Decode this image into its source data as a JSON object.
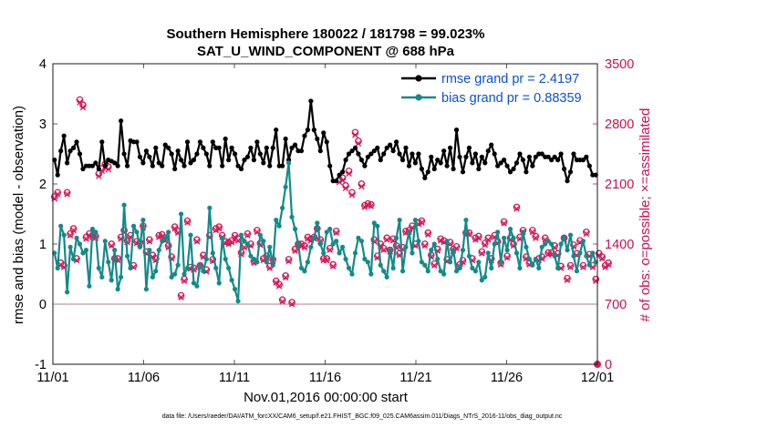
{
  "chart_data": {
    "type": "line",
    "title": "Southern Hemisphere 180022 / 181798 = 99.023%",
    "subtitle": "SAT_U_WIND_COMPONENT @ 688 hPa",
    "xlabel": "Nov.01,2016 00:00:00 start",
    "ylabel_left": "rmse and bias (model - observation)",
    "ylabel_right": "# of obs: o=possible; ×=assimilated",
    "footnote": "data file: /Users/raeder/DAI/ATM_forcXX/CAM6_setup/f.e21.FHIST_BGC.f09_025.CAM6assim.011/Diags_NTrS_2016-11/obs_diag_output.nc",
    "x_ticks": [
      "11/01",
      "11/06",
      "11/11",
      "11/16",
      "11/21",
      "11/26",
      "12/01"
    ],
    "x_tick_days": [
      0,
      5,
      10,
      15,
      20,
      25,
      30
    ],
    "x_range_days": [
      0,
      30
    ],
    "ylim_left": [
      -1,
      4
    ],
    "y_ticks_left": [
      "-1",
      "0",
      "1",
      "2",
      "3",
      "4"
    ],
    "ylim_right": [
      0,
      3500
    ],
    "y_ticks_right": [
      "0",
      "700",
      "1400",
      "2100",
      "2800",
      "3500"
    ],
    "zero_line": 0,
    "colors": {
      "rmse": "#000000",
      "bias": "#138a8a",
      "obs": "#d6195a",
      "zero": "#c9a9ad",
      "legend_text": "#0b4fd6",
      "right_axis": "#c8104c"
    },
    "legend": {
      "position": "top-right",
      "rmse_label": "rmse grand pr = 2.4197",
      "bias_label": "bias grand pr = 0.88359"
    },
    "series": [
      {
        "name": "rmse",
        "values": [
          2.4,
          2.15,
          2.55,
          2.8,
          2.35,
          2.55,
          2.6,
          2.7,
          2.5,
          2.25,
          2.3,
          2.3,
          2.3,
          2.35,
          2.25,
          2.7,
          2.3,
          2.4,
          2.38,
          2.35,
          2.3,
          3.05,
          2.5,
          2.3,
          2.72,
          2.7,
          2.7,
          2.45,
          2.35,
          2.55,
          2.45,
          2.3,
          2.6,
          2.35,
          2.3,
          2.65,
          2.6,
          2.5,
          2.25,
          2.55,
          2.4,
          2.3,
          2.7,
          2.35,
          2.4,
          2.5,
          2.7,
          2.6,
          2.5,
          2.3,
          2.7,
          2.6,
          2.6,
          2.3,
          2.75,
          2.4,
          2.6,
          2.5,
          2.3,
          2.25,
          2.4,
          2.45,
          2.6,
          2.4,
          2.7,
          2.5,
          2.35,
          2.6,
          2.3,
          2.6,
          2.9,
          2.3,
          2.3,
          2.75,
          2.4,
          2.6,
          2.65,
          2.55,
          2.55,
          2.8,
          2.9,
          3.38,
          2.9,
          2.75,
          2.55,
          2.85,
          2.7,
          2.3,
          2.05,
          2.05,
          2.15,
          2.2,
          2.4,
          2.5,
          2.55,
          2.6,
          2.5,
          2.4,
          2.3,
          2.45,
          2.5,
          2.55,
          2.6,
          2.4,
          2.5,
          2.6,
          2.65,
          2.55,
          2.7,
          2.5,
          2.4,
          2.6,
          2.3,
          2.5,
          2.35,
          2.5,
          2.25,
          2.1,
          2.2,
          2.45,
          2.25,
          2.4,
          2.35,
          2.55,
          2.3,
          2.6,
          2.25,
          2.9,
          2.45,
          2.2,
          2.45,
          2.6,
          2.35,
          2.5,
          2.25,
          2.45,
          2.35,
          2.55,
          2.65,
          2.5,
          2.3,
          2.35,
          2.4,
          2.3,
          2.2,
          2.25,
          2.35,
          2.5,
          2.4,
          2.2,
          2.45,
          2.3,
          2.45,
          2.5,
          2.5,
          2.45,
          2.45,
          2.4,
          2.45,
          2.4,
          2.5,
          2.25,
          2.05,
          2.2,
          2.5,
          2.4,
          2.4,
          2.4,
          2.45,
          2.3,
          2.15,
          2.15
        ]
      },
      {
        "name": "bias",
        "values": [
          0.85,
          0.6,
          1.3,
          1.15,
          0.2,
          0.95,
          0.75,
          1.1,
          1.0,
          0.85,
          0.9,
          0.3,
          1.25,
          1.2,
          0.6,
          0.45,
          1.05,
          0.7,
          0.4,
          0.9,
          0.25,
          0.45,
          1.65,
          0.8,
          0.6,
          1.3,
          1.2,
          0.95,
          1.4,
          0.25,
          0.9,
          0.45,
          0.55,
          0.9,
          1.05,
          1.1,
          1.2,
          0.45,
          0.5,
          0.65,
          1.5,
          0.5,
          0.6,
          1.15,
          0.35,
          0.3,
          0.65,
          0.55,
          0.75,
          1.6,
          0.85,
          0.6,
          0.35,
          1.1,
          0.75,
          0.6,
          0.4,
          0.25,
          0.05,
          1.15,
          1.05,
          1.0,
          0.8,
          0.75,
          0.7,
          1.15,
          1.05,
          0.7,
          0.95,
          0.65,
          1.4,
          1.3,
          1.6,
          1.95,
          2.35,
          1.45,
          1.25,
          1.0,
          0.6,
          0.55,
          0.7,
          0.95,
          1.1,
          1.35,
          1.0,
          0.85,
          1.2,
          1.25,
          1.0,
          1.05,
          0.85,
          0.95,
          0.75,
          0.6,
          0.5,
          0.85,
          1.1,
          1.05,
          0.75,
          0.7,
          0.5,
          1.35,
          1.3,
          0.65,
          0.55,
          0.45,
          0.9,
          0.6,
          1.1,
          1.4,
          0.55,
          0.95,
          1.2,
          0.85,
          1.4,
          1.05,
          0.7,
          0.65,
          0.55,
          0.9,
          1.0,
          0.75,
          0.55,
          0.5,
          1.05,
          0.7,
          0.9,
          0.55,
          0.6,
          0.9,
          1.4,
          0.8,
          0.6,
          0.55,
          0.7,
          0.4,
          0.45,
          0.85,
          0.6,
          1.0,
          1.2,
          0.7,
          1.1,
          0.9,
          1.25,
          1.1,
          0.85,
          0.6,
          1.2,
          0.95,
          0.75,
          0.65,
          0.75,
          0.6,
          0.95,
          1.0,
          1.05,
          1.0,
          0.8,
          0.6,
          1.0,
          1.1,
          0.9,
          1.15,
          0.8,
          0.55,
          0.85,
          1.05,
          0.8,
          0.65,
          0.85,
          0.7
        ]
      },
      {
        "name": "obs_possible",
        "values": [
          1950,
          2000,
          1180,
          1150,
          2000,
          1520,
          1580,
          1230,
          3080,
          3020,
          1480,
          1520,
          1500,
          1490,
          2220,
          2280,
          2330,
          2300,
          1400,
          1230,
          1230,
          1480,
          1560,
          1440,
          1500,
          1150,
          1430,
          1420,
          1610,
          1310,
          1450,
          1270,
          1230,
          1500,
          1510,
          1460,
          1380,
          1250,
          1600,
          1550,
          800,
          990,
          1670,
          1130,
          1120,
          1450,
          1150,
          1270,
          1100,
          1500,
          1220,
          1580,
          1600,
          1500,
          1430,
          1420,
          1440,
          1500,
          1460,
          1300,
          1380,
          1520,
          1400,
          1200,
          1560,
          1410,
          1230,
          1260,
          1140,
          1220,
          970,
          930,
          750,
          1030,
          1220,
          720,
          1340,
          1400,
          1400,
          1380,
          1480,
          1460,
          1480,
          1580,
          1450,
          1230,
          1230,
          1350,
          1160,
          1550,
          2150,
          2170,
          2080,
          2250,
          2000,
          2700,
          2600,
          2100,
          1850,
          1870,
          1860,
          1450,
          1260,
          1400,
          1350,
          1470,
          1330,
          1460,
          1380,
          1290,
          1360,
          1550,
          1560,
          1610,
          1400,
          1650,
          1670,
          1400,
          1530,
          1270,
          1170,
          1340,
          1460,
          1440,
          1220,
          1420,
          1340,
          1370,
          1160,
          1210,
          1530,
          1530,
          1230,
          1470,
          1490,
          1310,
          1410,
          1470,
          1230,
          1500,
          1430,
          1180,
          1660,
          1260,
          1470,
          1400,
          1830,
          1480,
          1560,
          1250,
          1180,
          1560,
          1490,
          1230,
          1250,
          1470,
          1300,
          1300,
          1380,
          1290,
          1140,
          1470,
          1000,
          1150,
          1390,
          1290,
          1440,
          1150,
          1540,
          1280,
          1150,
          990,
          1290,
          1250,
          1150,
          1180
        ]
      },
      {
        "name": "obs_assimilated",
        "values": [
          1930,
          1980,
          1160,
          1130,
          1980,
          1500,
          1560,
          1210,
          3050,
          2990,
          1460,
          1500,
          1480,
          1470,
          2190,
          2250,
          2300,
          2270,
          1380,
          1210,
          1210,
          1460,
          1540,
          1420,
          1480,
          1130,
          1410,
          1400,
          1590,
          1290,
          1430,
          1250,
          1210,
          1480,
          1490,
          1440,
          1360,
          1230,
          1580,
          1530,
          780,
          970,
          1650,
          1110,
          1100,
          1430,
          1130,
          1250,
          1080,
          1480,
          1200,
          1560,
          1580,
          1480,
          1410,
          1400,
          1420,
          1480,
          1440,
          1280,
          1360,
          1500,
          1380,
          1180,
          1540,
          1390,
          1210,
          1240,
          1120,
          1200,
          950,
          910,
          730,
          1010,
          1200,
          700,
          1320,
          1380,
          1380,
          1360,
          1460,
          1440,
          1460,
          1560,
          1430,
          1210,
          1210,
          1330,
          1140,
          1530,
          2120,
          2140,
          2050,
          2220,
          1970,
          2670,
          2570,
          2070,
          1830,
          1850,
          1840,
          1430,
          1240,
          1380,
          1330,
          1450,
          1310,
          1440,
          1360,
          1270,
          1340,
          1530,
          1540,
          1590,
          1380,
          1630,
          1650,
          1380,
          1510,
          1250,
          1150,
          1320,
          1440,
          1420,
          1200,
          1400,
          1320,
          1350,
          1140,
          1190,
          1510,
          1510,
          1210,
          1450,
          1470,
          1290,
          1390,
          1450,
          1210,
          1480,
          1410,
          1160,
          1640,
          1240,
          1450,
          1380,
          1810,
          1460,
          1540,
          1230,
          1160,
          1540,
          1470,
          1210,
          1230,
          1450,
          1280,
          1280,
          1360,
          1270,
          1120,
          1450,
          980,
          1130,
          1370,
          1270,
          1420,
          1130,
          1520,
          1260,
          1130,
          970,
          1270,
          1230,
          1130,
          1160
        ]
      }
    ],
    "last_obs_value": 0
  }
}
